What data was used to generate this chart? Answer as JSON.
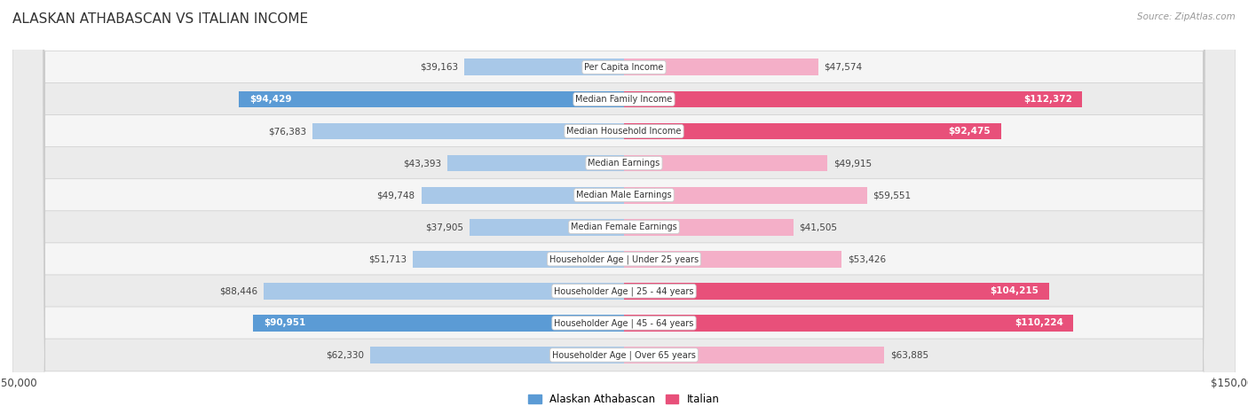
{
  "title": "ALASKAN ATHABASCAN VS ITALIAN INCOME",
  "source": "Source: ZipAtlas.com",
  "categories": [
    "Per Capita Income",
    "Median Family Income",
    "Median Household Income",
    "Median Earnings",
    "Median Male Earnings",
    "Median Female Earnings",
    "Householder Age | Under 25 years",
    "Householder Age | 25 - 44 years",
    "Householder Age | 45 - 64 years",
    "Householder Age | Over 65 years"
  ],
  "alaskan": [
    39163,
    94429,
    76383,
    43393,
    49748,
    37905,
    51713,
    88446,
    90951,
    62330
  ],
  "italian": [
    47574,
    112372,
    92475,
    49915,
    59551,
    41505,
    53426,
    104215,
    110224,
    63885
  ],
  "alaskan_labels": [
    "$39,163",
    "$94,429",
    "$76,383",
    "$43,393",
    "$49,748",
    "$37,905",
    "$51,713",
    "$88,446",
    "$90,951",
    "$62,330"
  ],
  "italian_labels": [
    "$47,574",
    "$112,372",
    "$92,475",
    "$49,915",
    "$59,551",
    "$41,505",
    "$53,426",
    "$104,215",
    "$110,224",
    "$63,885"
  ],
  "alaskan_inside": [
    false,
    true,
    false,
    false,
    false,
    false,
    false,
    false,
    true,
    false
  ],
  "italian_inside": [
    false,
    true,
    true,
    false,
    false,
    false,
    false,
    true,
    true,
    false
  ],
  "max_val": 150000,
  "alaskan_color_light": "#a8c8e8",
  "alaskan_color_dark": "#5b9bd5",
  "italian_color_light": "#f4afc8",
  "italian_color_dark": "#e8507a",
  "row_bg_odd": "#f5f5f5",
  "row_bg_even": "#ebebeb",
  "label_color_inside": "#ffffff",
  "label_color_outside": "#555555",
  "title_fontsize": 11,
  "source_fontsize": 7.5,
  "bar_height": 0.52,
  "figure_bg": "#ffffff",
  "legend_blue": "#5b9bd5",
  "legend_pink": "#e8507a"
}
